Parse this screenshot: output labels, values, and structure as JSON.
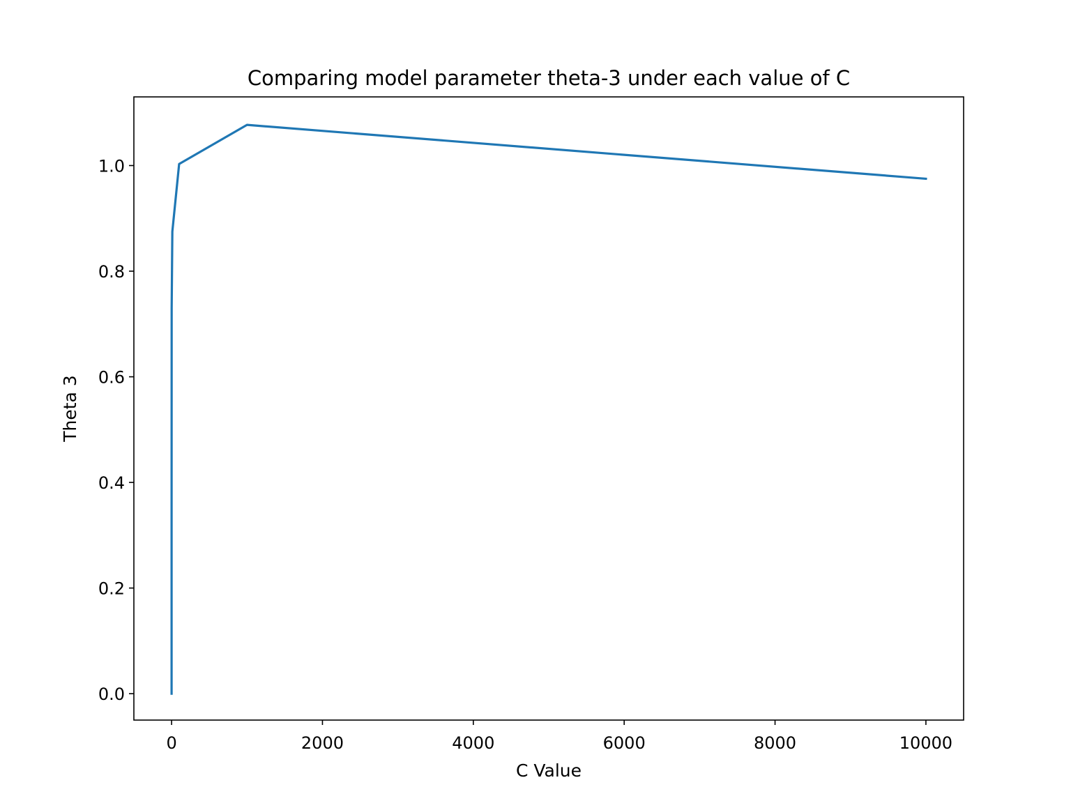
{
  "chart_data": {
    "type": "line",
    "title": "Comparing model parameter theta-3 under each value of C",
    "xlabel": "C Value",
    "ylabel": "Theta 3",
    "xlim": [
      -500,
      10500
    ],
    "ylim": [
      -0.05,
      1.13
    ],
    "x_ticks": [
      0,
      2000,
      4000,
      6000,
      8000,
      10000
    ],
    "x_tick_labels": [
      "0",
      "2000",
      "4000",
      "6000",
      "8000",
      "10000"
    ],
    "y_ticks": [
      0.0,
      0.2,
      0.4,
      0.6,
      0.8,
      1.0
    ],
    "y_tick_labels": [
      "0.0",
      "0.2",
      "0.4",
      "0.6",
      "0.8",
      "1.0"
    ],
    "grid": false,
    "series": [
      {
        "color": "#1f77b4",
        "x": [
          0.0001,
          0.001,
          0.01,
          0.1,
          1,
          10,
          100,
          1000,
          10000
        ],
        "y": [
          0.0,
          0.0,
          0.005,
          0.35,
          0.73,
          0.875,
          1.003,
          1.077,
          0.975
        ]
      }
    ]
  }
}
